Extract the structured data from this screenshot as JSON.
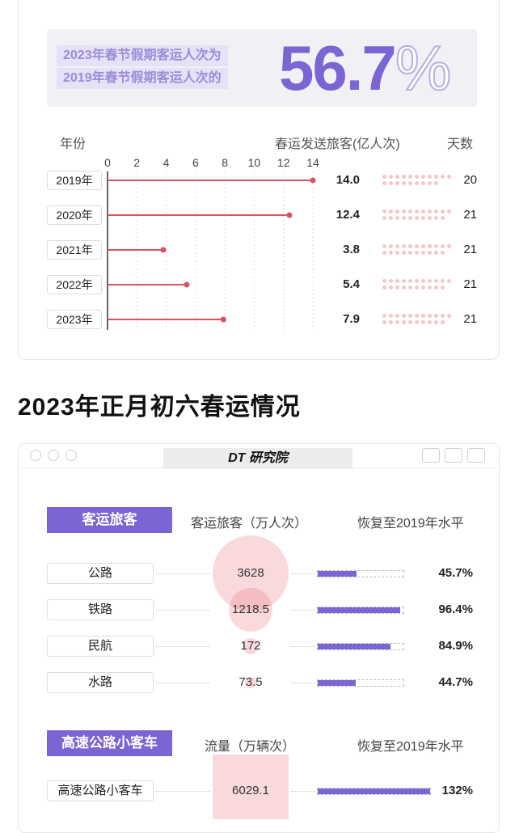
{
  "top": {
    "banner_line1": "2023年春节假期客运人次为",
    "banner_line2": "2019年春节假期客运人次的",
    "banner_value": "56.7",
    "banner_pct": "%"
  },
  "chart_data": [
    {
      "type": "bar",
      "xlabel": "年份",
      "ylabel": "春运发送旅客(亿人次)",
      "extra_column_label": "天数",
      "ticks": [
        "0",
        "2",
        "4",
        "6",
        "8",
        "10",
        "12",
        "14"
      ],
      "xlim": [
        0,
        14
      ],
      "categories": [
        "2019年",
        "2020年",
        "2021年",
        "2022年",
        "2023年"
      ],
      "values": [
        14.0,
        12.4,
        3.8,
        5.4,
        7.9
      ],
      "value_labels": [
        "14.0",
        "12.4",
        "3.8",
        "5.4",
        "7.9"
      ],
      "days": [
        "20",
        "21",
        "21",
        "21",
        "21"
      ],
      "days_values": [
        20,
        21,
        21,
        21,
        21
      ],
      "color": "#d9535f"
    },
    {
      "type": "table",
      "columns": [
        "客运旅客（万人次）",
        "恢复至2019年水平"
      ],
      "categories": [
        "公路",
        "铁路",
        "民航",
        "水路"
      ],
      "values": [
        3628,
        1218.5,
        172,
        73.5
      ],
      "value_labels": [
        "3628",
        "1218.5",
        "172",
        "73.5"
      ],
      "recovery": [
        45.7,
        96.4,
        84.9,
        44.7
      ],
      "recovery_labels": [
        "45.7%",
        "96.4%",
        "84.9%",
        "44.7%"
      ],
      "accent": "#7b64d3"
    },
    {
      "type": "table",
      "columns": [
        "流量（万辆次）",
        "恢复至2019年水平"
      ],
      "categories": [
        "高速公路小客车"
      ],
      "values": [
        6029.1
      ],
      "value_labels": [
        "6029.1"
      ],
      "recovery": [
        132
      ],
      "recovery_labels": [
        "132%"
      ],
      "accent": "#7b64d3"
    }
  ],
  "section": {
    "title": "2023年正月初六春运情况",
    "brand": "DT 研究院",
    "tag1": "客运旅客",
    "tag2": "高速公路小客车"
  }
}
